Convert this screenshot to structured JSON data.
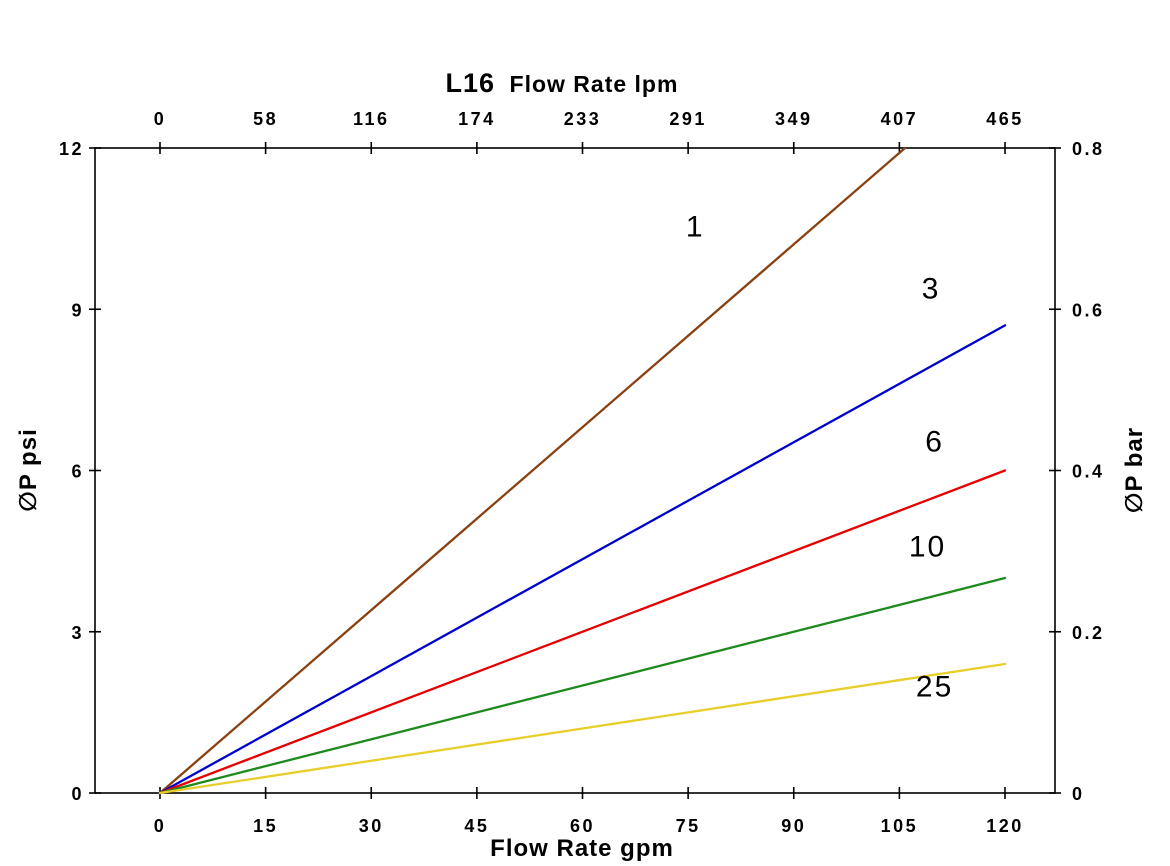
{
  "chart_data": {
    "type": "line",
    "title": {
      "model": "L16",
      "text": "Flow Rate lpm"
    },
    "top_axis": {
      "label": "Flow Rate lpm",
      "unit": "lpm",
      "tick_labels": [
        "0",
        "58",
        "116",
        "174",
        "233",
        "291",
        "349",
        "407",
        "465"
      ],
      "range": [
        0,
        465
      ]
    },
    "bottom_axis": {
      "label": "Flow Rate gpm",
      "unit": "gpm",
      "tick_labels": [
        "0",
        "15",
        "30",
        "45",
        "60",
        "75",
        "90",
        "105",
        "120"
      ],
      "range": [
        0,
        120
      ]
    },
    "left_axis": {
      "label": "∅P psi",
      "tick_labels": [
        "0",
        "3",
        "6",
        "9",
        "12"
      ],
      "range": [
        0,
        12
      ]
    },
    "right_axis": {
      "label": "∅P bar",
      "tick_labels": [
        "0",
        "0.2",
        "0.4",
        "0.6",
        "0.8"
      ],
      "range": [
        0,
        0.8
      ]
    },
    "axis_color": "#000000",
    "background": "#ffffff",
    "grid": false,
    "legend": "inline-labels",
    "series": [
      {
        "name": "1",
        "color": "#8a4010",
        "points": [
          [
            0,
            0
          ],
          [
            105.8,
            12
          ]
        ],
        "label": "1",
        "label_pos": [
          76,
          10.35
        ]
      },
      {
        "name": "3",
        "color": "#0000cc",
        "points": [
          [
            0,
            0
          ],
          [
            120,
            8.7
          ]
        ],
        "label": "3",
        "label_pos": [
          109.5,
          9.2
        ]
      },
      {
        "name": "6",
        "color": "#e60000",
        "points": [
          [
            0,
            0
          ],
          [
            120,
            6.0
          ]
        ],
        "label": "6",
        "label_pos": [
          110,
          6.35
        ]
      },
      {
        "name": "10",
        "color": "#1e8a1e",
        "points": [
          [
            0,
            0
          ],
          [
            120,
            4.0
          ]
        ],
        "label": "10",
        "label_pos": [
          109,
          4.4
        ]
      },
      {
        "name": "25",
        "color": "#e8ce2a",
        "points": [
          [
            0,
            0
          ],
          [
            120,
            2.4
          ]
        ],
        "label": "25",
        "label_pos": [
          110,
          1.8
        ]
      }
    ]
  }
}
